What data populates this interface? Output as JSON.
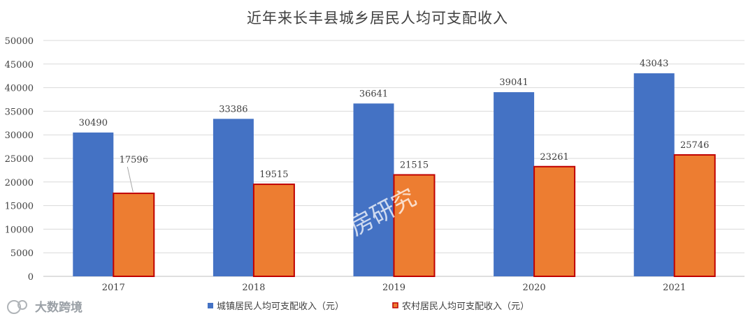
{
  "chart_data": {
    "type": "bar",
    "title": "近年来长丰县城乡居民人均可支配收入",
    "categories": [
      "2017",
      "2018",
      "2019",
      "2020",
      "2021"
    ],
    "series": [
      {
        "name": "城镇居民人均可支配收入（元）",
        "values": [
          30490,
          33386,
          36641,
          39041,
          43043
        ],
        "color": "#4472c4"
      },
      {
        "name": "农村居民人均可支配收入（元）",
        "values": [
          17596,
          19515,
          21515,
          23261,
          25746
        ],
        "color": "#ed7d31",
        "border": "#c00000"
      }
    ],
    "ylim": [
      0,
      50000
    ],
    "yticks": [
      0,
      5000,
      10000,
      15000,
      20000,
      25000,
      30000,
      35000,
      40000,
      45000,
      50000
    ],
    "grid": true,
    "legend_position": "bottom"
  },
  "watermark": {
    "logo_text": "大数跨境",
    "diagonal_text": "房研究"
  }
}
